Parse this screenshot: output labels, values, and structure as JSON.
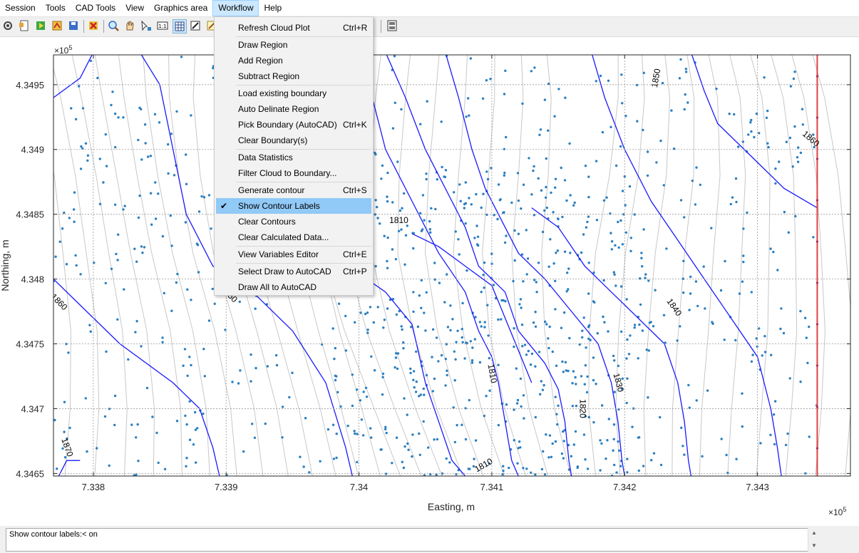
{
  "menubar": {
    "items": [
      "Session",
      "Tools",
      "CAD Tools",
      "View",
      "Graphics area",
      "Workflow",
      "Help"
    ],
    "active": "Workflow"
  },
  "toolbar": {
    "icons": [
      "gear-icon",
      "new-file-icon",
      "open-file-icon",
      "import-icon",
      "save-icon",
      "delete-icon",
      "zoom-in-icon",
      "pan-hand-icon",
      "pick-icon",
      "one-to-one-icon",
      "grid-icon",
      "edit-icon",
      "notes-icon",
      "tool-icon",
      "tool-icon",
      "data-icon",
      "window-icon"
    ]
  },
  "workflow_menu": {
    "groups": [
      [
        {
          "label": "Refresh Cloud Plot",
          "shortcut": "Ctrl+R"
        }
      ],
      [
        {
          "label": "Draw Region",
          "shortcut": ""
        },
        {
          "label": "Add Region",
          "shortcut": ""
        },
        {
          "label": "Subtract Region",
          "shortcut": ""
        }
      ],
      [
        {
          "label": "Load existing boundary",
          "shortcut": ""
        },
        {
          "label": "Auto Delinate Region",
          "shortcut": ""
        },
        {
          "label": "Pick Boundary (AutoCAD)",
          "shortcut": "Ctrl+K"
        },
        {
          "label": "Clear Boundary(s)",
          "shortcut": ""
        }
      ],
      [
        {
          "label": "Data Statistics",
          "shortcut": ""
        },
        {
          "label": "Filter Cloud to Boundary...",
          "shortcut": ""
        }
      ],
      [
        {
          "label": "Generate contour",
          "shortcut": "Ctrl+S"
        },
        {
          "label": "Show Contour Labels",
          "shortcut": "",
          "checked": true,
          "highlighted": true
        },
        {
          "label": "Clear Contours",
          "shortcut": ""
        },
        {
          "label": "Clear Calculated Data...",
          "shortcut": ""
        }
      ],
      [
        {
          "label": "View Variables Editor",
          "shortcut": "Ctrl+E"
        }
      ],
      [
        {
          "label": "Select Draw to AutoCAD",
          "shortcut": "Ctrl+P"
        },
        {
          "label": "Draw All to AutoCAD",
          "shortcut": ""
        }
      ]
    ],
    "check_glyph": "✔"
  },
  "status": {
    "text": "Show contour labels:< on"
  },
  "chart_data": {
    "type": "scatter",
    "xlabel": "Easting, m",
    "ylabel": "Northing, m",
    "x_multiplier": "×10",
    "x_multiplier_exp": "5",
    "y_multiplier": "×10",
    "y_multiplier_exp": "5",
    "xlim": [
      733770,
      734370
    ],
    "ylim": [
      434648,
      434973
    ],
    "x_ticks": [
      {
        "value": 733800,
        "label": "7.338"
      },
      {
        "value": 733900,
        "label": "7.339"
      },
      {
        "value": 734000,
        "label": "7.34"
      },
      {
        "value": 734100,
        "label": "7.341"
      },
      {
        "value": 734200,
        "label": "7.342"
      },
      {
        "value": 734300,
        "label": "7.343"
      }
    ],
    "y_ticks": [
      {
        "value": 434650,
        "label": "4.3465"
      },
      {
        "value": 434700,
        "label": "4.347"
      },
      {
        "value": 434750,
        "label": "4.3475"
      },
      {
        "value": 434800,
        "label": "4.348"
      },
      {
        "value": 434850,
        "label": "4.3485"
      },
      {
        "value": 434900,
        "label": "4.349"
      },
      {
        "value": 434950,
        "label": "4.3495"
      }
    ],
    "grid": true,
    "boundary_easting": 734345,
    "colors": {
      "points": "#2a7fc0",
      "major_contour": "#1a1aff",
      "minor_contour": "#c8c8c8",
      "boundary": "#e04040",
      "grid": "#9a9a9a"
    },
    "major_contours": [
      {
        "level": 1870,
        "points": [
          [
            733770,
            434640
          ],
          [
            733780,
            434660
          ],
          [
            733790,
            434660
          ]
        ]
      },
      {
        "level": 1860,
        "points": [
          [
            733770,
            434800
          ],
          [
            733790,
            434780
          ],
          [
            733820,
            434750
          ],
          [
            733860,
            434720
          ],
          [
            733880,
            434700
          ],
          [
            733890,
            434670
          ],
          [
            733895,
            434648
          ]
        ]
      },
      {
        "level": 1860,
        "points": [
          [
            733770,
            434940
          ],
          [
            733790,
            434955
          ],
          [
            733800,
            434975
          ]
        ]
      },
      {
        "level": 1850,
        "points": [
          [
            733835,
            434975
          ],
          [
            733850,
            434950
          ],
          [
            733860,
            434900
          ],
          [
            733870,
            434850
          ],
          [
            733890,
            434810
          ],
          [
            733920,
            434790
          ],
          [
            733950,
            434760
          ],
          [
            733975,
            434720
          ],
          [
            733990,
            434670
          ],
          [
            733995,
            434648
          ]
        ]
      },
      {
        "level": 1840,
        "points": [
          [
            733930,
            434975
          ],
          [
            733940,
            434940
          ],
          [
            733950,
            434900
          ],
          [
            733960,
            434850
          ],
          [
            733985,
            434815
          ],
          [
            734020,
            434790
          ],
          [
            734040,
            434765
          ],
          [
            734050,
            434720
          ],
          [
            734060,
            434690
          ],
          [
            734070,
            434660
          ],
          [
            734080,
            434648
          ]
        ]
      },
      {
        "level": 1830,
        "points": [
          [
            734000,
            434975
          ],
          [
            734010,
            434940
          ],
          [
            734020,
            434900
          ],
          [
            734040,
            434860
          ],
          [
            734050,
            434840
          ],
          [
            734060,
            434820
          ],
          [
            734080,
            434790
          ],
          [
            734090,
            434760
          ],
          [
            734100,
            434740
          ],
          [
            734105,
            434720
          ],
          [
            734110,
            434690
          ],
          [
            734115,
            434660
          ],
          [
            734120,
            434648
          ]
        ]
      },
      {
        "level": 1820,
        "points": [
          [
            734020,
            434975
          ],
          [
            734035,
            434940
          ],
          [
            734050,
            434900
          ],
          [
            734070,
            434860
          ],
          [
            734080,
            434840
          ],
          [
            734090,
            434810
          ],
          [
            734110,
            434790
          ],
          [
            734120,
            434760
          ],
          [
            734140,
            434735
          ],
          [
            734150,
            434715
          ],
          [
            734155,
            434690
          ],
          [
            734158,
            434660
          ],
          [
            734160,
            434648
          ]
        ]
      },
      {
        "level": 1810,
        "points": [
          [
            734065,
            434975
          ],
          [
            734075,
            434940
          ],
          [
            734085,
            434900
          ],
          [
            734095,
            434870
          ],
          [
            734105,
            434850
          ],
          [
            734120,
            434820
          ],
          [
            734140,
            434800
          ],
          [
            734160,
            434775
          ],
          [
            734180,
            434750
          ],
          [
            734190,
            434720
          ],
          [
            734195,
            434690
          ],
          [
            734198,
            434660
          ],
          [
            734200,
            434648
          ]
        ]
      },
      {
        "level": 1810,
        "points": [
          [
            734040,
            434835
          ],
          [
            734060,
            434825
          ],
          [
            734080,
            434810
          ],
          [
            734100,
            434795
          ],
          [
            734110,
            434770
          ],
          [
            734120,
            434745
          ],
          [
            734130,
            434720
          ]
        ]
      },
      {
        "level": 1810,
        "points": [
          [
            734130,
            434855
          ],
          [
            734150,
            434840
          ],
          [
            734170,
            434810
          ],
          [
            734190,
            434790
          ],
          [
            734210,
            434770
          ],
          [
            734230,
            434750
          ],
          [
            734240,
            434720
          ],
          [
            734245,
            434690
          ],
          [
            734248,
            434660
          ],
          [
            734250,
            434648
          ]
        ]
      },
      {
        "level": 1840,
        "points": [
          [
            734175,
            434975
          ],
          [
            734185,
            434940
          ],
          [
            734200,
            434900
          ],
          [
            734220,
            434860
          ],
          [
            734240,
            434830
          ],
          [
            734260,
            434800
          ],
          [
            734280,
            434770
          ],
          [
            734300,
            434740
          ],
          [
            734310,
            434700
          ],
          [
            734315,
            434670
          ],
          [
            734318,
            434648
          ]
        ]
      },
      {
        "level": 1850,
        "points": [
          [
            734250,
            434975
          ],
          [
            734260,
            434945
          ],
          [
            734270,
            434920
          ],
          [
            734300,
            434890
          ],
          [
            734320,
            434870
          ],
          [
            734345,
            434855
          ]
        ]
      }
    ],
    "minor_count": 32,
    "point_count": 1050,
    "labels": [
      {
        "text": "1850",
        "x": 734224,
        "y": 434955,
        "rot": -80
      },
      {
        "text": "1860",
        "x": 734340,
        "y": 434908,
        "rot": 40
      },
      {
        "text": "1810",
        "x": 734030,
        "y": 434845,
        "rot": 0
      },
      {
        "text": "1860",
        "x": 733774,
        "y": 434782,
        "rot": 45
      },
      {
        "text": "1850",
        "x": 733902,
        "y": 434788,
        "rot": 45
      },
      {
        "text": "1840",
        "x": 734237,
        "y": 434778,
        "rot": 55
      },
      {
        "text": "1810",
        "x": 734100,
        "y": 434727,
        "rot": 80
      },
      {
        "text": "1830",
        "x": 734195,
        "y": 434720,
        "rot": 75
      },
      {
        "text": "1820",
        "x": 734168,
        "y": 434700,
        "rot": 90
      },
      {
        "text": "1870",
        "x": 733780,
        "y": 434670,
        "rot": 70
      },
      {
        "text": "1810",
        "x": 734094,
        "y": 434656,
        "rot": -30
      }
    ]
  }
}
